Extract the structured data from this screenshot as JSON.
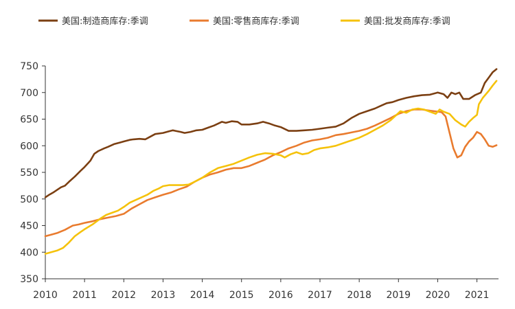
{
  "chart_data": {
    "type": "line",
    "title": "",
    "xlabel": "",
    "ylabel": "",
    "xlim": [
      2010.0,
      2021.55
    ],
    "ylim": [
      350,
      750
    ],
    "y_ticks": [
      350,
      400,
      450,
      500,
      550,
      600,
      650,
      700,
      750
    ],
    "x_ticks": [
      2010,
      2011,
      2012,
      2013,
      2014,
      2015,
      2016,
      2017,
      2018,
      2019,
      2020,
      2021
    ],
    "legend_position": "top",
    "grid": false,
    "series": [
      {
        "name": "美国:制造商库存:季调",
        "color": "#7B3F12",
        "points": [
          [
            2010.0,
            503
          ],
          [
            2010.1,
            508
          ],
          [
            2010.2,
            512
          ],
          [
            2010.3,
            517
          ],
          [
            2010.4,
            522
          ],
          [
            2010.5,
            525
          ],
          [
            2010.6,
            532
          ],
          [
            2010.75,
            542
          ],
          [
            2010.9,
            553
          ],
          [
            2011.0,
            560
          ],
          [
            2011.15,
            572
          ],
          [
            2011.25,
            585
          ],
          [
            2011.35,
            590
          ],
          [
            2011.5,
            595
          ],
          [
            2011.6,
            598
          ],
          [
            2011.75,
            603
          ],
          [
            2011.9,
            606
          ],
          [
            2012.0,
            608
          ],
          [
            2012.15,
            611
          ],
          [
            2012.25,
            612
          ],
          [
            2012.4,
            613
          ],
          [
            2012.55,
            612
          ],
          [
            2012.65,
            616
          ],
          [
            2012.8,
            622
          ],
          [
            2013.0,
            624
          ],
          [
            2013.15,
            627
          ],
          [
            2013.25,
            629
          ],
          [
            2013.45,
            626
          ],
          [
            2013.55,
            624
          ],
          [
            2013.7,
            626
          ],
          [
            2013.85,
            629
          ],
          [
            2014.0,
            630
          ],
          [
            2014.15,
            634
          ],
          [
            2014.3,
            638
          ],
          [
            2014.5,
            645
          ],
          [
            2014.6,
            643
          ],
          [
            2014.75,
            646
          ],
          [
            2014.9,
            645
          ],
          [
            2015.0,
            640
          ],
          [
            2015.2,
            640
          ],
          [
            2015.4,
            642
          ],
          [
            2015.55,
            645
          ],
          [
            2015.7,
            642
          ],
          [
            2015.85,
            638
          ],
          [
            2016.0,
            635
          ],
          [
            2016.2,
            628
          ],
          [
            2016.4,
            628
          ],
          [
            2016.6,
            629
          ],
          [
            2016.8,
            630
          ],
          [
            2017.0,
            632
          ],
          [
            2017.2,
            634
          ],
          [
            2017.4,
            636
          ],
          [
            2017.6,
            642
          ],
          [
            2017.8,
            652
          ],
          [
            2018.0,
            660
          ],
          [
            2018.2,
            665
          ],
          [
            2018.4,
            670
          ],
          [
            2018.55,
            675
          ],
          [
            2018.7,
            680
          ],
          [
            2018.85,
            682
          ],
          [
            2019.0,
            686
          ],
          [
            2019.2,
            690
          ],
          [
            2019.4,
            693
          ],
          [
            2019.6,
            695
          ],
          [
            2019.8,
            696
          ],
          [
            2020.0,
            700
          ],
          [
            2020.15,
            697
          ],
          [
            2020.25,
            690
          ],
          [
            2020.35,
            700
          ],
          [
            2020.45,
            697
          ],
          [
            2020.55,
            700
          ],
          [
            2020.65,
            688
          ],
          [
            2020.8,
            688
          ],
          [
            2020.95,
            695
          ],
          [
            2021.1,
            700
          ],
          [
            2021.2,
            718
          ],
          [
            2021.3,
            728
          ],
          [
            2021.4,
            738
          ],
          [
            2021.5,
            744
          ]
        ]
      },
      {
        "name": "美国:零售商库存:季调",
        "color": "#E97B2E",
        "points": [
          [
            2010.0,
            430
          ],
          [
            2010.15,
            433
          ],
          [
            2010.3,
            436
          ],
          [
            2010.5,
            442
          ],
          [
            2010.7,
            450
          ],
          [
            2010.85,
            452
          ],
          [
            2011.0,
            455
          ],
          [
            2011.2,
            458
          ],
          [
            2011.4,
            462
          ],
          [
            2011.6,
            465
          ],
          [
            2011.8,
            468
          ],
          [
            2012.0,
            472
          ],
          [
            2012.2,
            482
          ],
          [
            2012.4,
            490
          ],
          [
            2012.6,
            498
          ],
          [
            2012.8,
            503
          ],
          [
            2013.0,
            508
          ],
          [
            2013.2,
            512
          ],
          [
            2013.4,
            518
          ],
          [
            2013.6,
            523
          ],
          [
            2013.8,
            532
          ],
          [
            2014.0,
            540
          ],
          [
            2014.2,
            546
          ],
          [
            2014.4,
            550
          ],
          [
            2014.6,
            555
          ],
          [
            2014.8,
            558
          ],
          [
            2015.0,
            558
          ],
          [
            2015.2,
            562
          ],
          [
            2015.4,
            568
          ],
          [
            2015.6,
            574
          ],
          [
            2015.8,
            582
          ],
          [
            2016.0,
            588
          ],
          [
            2016.2,
            595
          ],
          [
            2016.4,
            600
          ],
          [
            2016.6,
            606
          ],
          [
            2016.8,
            610
          ],
          [
            2017.0,
            612
          ],
          [
            2017.2,
            615
          ],
          [
            2017.4,
            620
          ],
          [
            2017.6,
            622
          ],
          [
            2017.8,
            625
          ],
          [
            2018.0,
            628
          ],
          [
            2018.2,
            632
          ],
          [
            2018.4,
            638
          ],
          [
            2018.6,
            645
          ],
          [
            2018.8,
            652
          ],
          [
            2019.0,
            660
          ],
          [
            2019.2,
            665
          ],
          [
            2019.4,
            668
          ],
          [
            2019.6,
            668
          ],
          [
            2019.8,
            666
          ],
          [
            2020.0,
            664
          ],
          [
            2020.1,
            663
          ],
          [
            2020.2,
            655
          ],
          [
            2020.3,
            625
          ],
          [
            2020.4,
            595
          ],
          [
            2020.5,
            578
          ],
          [
            2020.6,
            582
          ],
          [
            2020.7,
            598
          ],
          [
            2020.8,
            608
          ],
          [
            2020.9,
            615
          ],
          [
            2021.0,
            626
          ],
          [
            2021.1,
            622
          ],
          [
            2021.2,
            612
          ],
          [
            2021.3,
            600
          ],
          [
            2021.4,
            598
          ],
          [
            2021.5,
            601
          ]
        ]
      },
      {
        "name": "美国:批发商库存:季调",
        "color": "#F5C20B",
        "points": [
          [
            2010.0,
            397
          ],
          [
            2010.15,
            400
          ],
          [
            2010.3,
            403
          ],
          [
            2010.45,
            408
          ],
          [
            2010.6,
            418
          ],
          [
            2010.75,
            430
          ],
          [
            2010.9,
            438
          ],
          [
            2011.0,
            443
          ],
          [
            2011.2,
            452
          ],
          [
            2011.4,
            463
          ],
          [
            2011.55,
            470
          ],
          [
            2011.7,
            474
          ],
          [
            2011.85,
            478
          ],
          [
            2012.0,
            485
          ],
          [
            2012.15,
            493
          ],
          [
            2012.3,
            498
          ],
          [
            2012.45,
            503
          ],
          [
            2012.6,
            508
          ],
          [
            2012.75,
            515
          ],
          [
            2012.9,
            520
          ],
          [
            2013.0,
            524
          ],
          [
            2013.15,
            526
          ],
          [
            2013.3,
            526
          ],
          [
            2013.5,
            526
          ],
          [
            2013.65,
            527
          ],
          [
            2013.8,
            532
          ],
          [
            2014.0,
            540
          ],
          [
            2014.2,
            550
          ],
          [
            2014.4,
            558
          ],
          [
            2014.6,
            562
          ],
          [
            2014.8,
            566
          ],
          [
            2015.0,
            572
          ],
          [
            2015.2,
            578
          ],
          [
            2015.4,
            583
          ],
          [
            2015.6,
            586
          ],
          [
            2015.8,
            585
          ],
          [
            2016.0,
            582
          ],
          [
            2016.1,
            578
          ],
          [
            2016.25,
            584
          ],
          [
            2016.4,
            588
          ],
          [
            2016.55,
            584
          ],
          [
            2016.7,
            586
          ],
          [
            2016.85,
            592
          ],
          [
            2017.0,
            595
          ],
          [
            2017.2,
            597
          ],
          [
            2017.4,
            600
          ],
          [
            2017.6,
            605
          ],
          [
            2017.8,
            610
          ],
          [
            2018.0,
            615
          ],
          [
            2018.2,
            622
          ],
          [
            2018.4,
            630
          ],
          [
            2018.6,
            638
          ],
          [
            2018.8,
            648
          ],
          [
            2018.95,
            658
          ],
          [
            2019.05,
            665
          ],
          [
            2019.2,
            662
          ],
          [
            2019.35,
            668
          ],
          [
            2019.5,
            670
          ],
          [
            2019.65,
            668
          ],
          [
            2019.8,
            664
          ],
          [
            2019.95,
            660
          ],
          [
            2020.05,
            668
          ],
          [
            2020.15,
            664
          ],
          [
            2020.3,
            660
          ],
          [
            2020.45,
            648
          ],
          [
            2020.6,
            640
          ],
          [
            2020.7,
            636
          ],
          [
            2020.8,
            645
          ],
          [
            2020.9,
            652
          ],
          [
            2021.0,
            658
          ],
          [
            2021.05,
            678
          ],
          [
            2021.15,
            690
          ],
          [
            2021.3,
            703
          ],
          [
            2021.4,
            713
          ],
          [
            2021.5,
            722
          ]
        ]
      }
    ]
  }
}
